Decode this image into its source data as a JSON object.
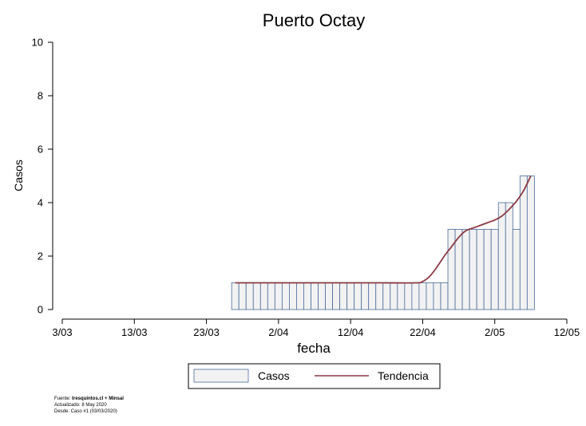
{
  "chart_data": {
    "type": "bar",
    "title": "Puerto Octay",
    "xlabel": "fecha",
    "ylabel": "Casos",
    "ylim": [
      0,
      10
    ],
    "y_ticks": [
      "0",
      "2",
      "4",
      "6",
      "8",
      "10"
    ],
    "x_range": [
      "2020-03-03",
      "2020-05-12"
    ],
    "x_ticks": [
      {
        "label": "3/03",
        "date": "2020-03-03"
      },
      {
        "label": "13/03",
        "date": "2020-03-13"
      },
      {
        "label": "23/03",
        "date": "2020-03-23"
      },
      {
        "label": "2/04",
        "date": "2020-04-02"
      },
      {
        "label": "12/04",
        "date": "2020-04-12"
      },
      {
        "label": "22/04",
        "date": "2020-04-22"
      },
      {
        "label": "2/05",
        "date": "2020-05-02"
      },
      {
        "label": "12/05",
        "date": "2020-05-12"
      }
    ],
    "grid": false,
    "legend_position": "bottom",
    "series": [
      {
        "name": "Casos",
        "kind": "bar",
        "color": "#f2f2f2",
        "edge_color": "#4a6a9a",
        "points": [
          {
            "date": "2020-03-27",
            "value": 1
          },
          {
            "date": "2020-03-28",
            "value": 1
          },
          {
            "date": "2020-03-29",
            "value": 1
          },
          {
            "date": "2020-03-30",
            "value": 1
          },
          {
            "date": "2020-03-31",
            "value": 1
          },
          {
            "date": "2020-04-01",
            "value": 1
          },
          {
            "date": "2020-04-02",
            "value": 1
          },
          {
            "date": "2020-04-03",
            "value": 1
          },
          {
            "date": "2020-04-04",
            "value": 1
          },
          {
            "date": "2020-04-05",
            "value": 1
          },
          {
            "date": "2020-04-06",
            "value": 1
          },
          {
            "date": "2020-04-07",
            "value": 1
          },
          {
            "date": "2020-04-08",
            "value": 1
          },
          {
            "date": "2020-04-09",
            "value": 1
          },
          {
            "date": "2020-04-10",
            "value": 1
          },
          {
            "date": "2020-04-11",
            "value": 1
          },
          {
            "date": "2020-04-12",
            "value": 1
          },
          {
            "date": "2020-04-13",
            "value": 1
          },
          {
            "date": "2020-04-14",
            "value": 1
          },
          {
            "date": "2020-04-15",
            "value": 1
          },
          {
            "date": "2020-04-16",
            "value": 1
          },
          {
            "date": "2020-04-17",
            "value": 1
          },
          {
            "date": "2020-04-18",
            "value": 1
          },
          {
            "date": "2020-04-19",
            "value": 1
          },
          {
            "date": "2020-04-20",
            "value": 1
          },
          {
            "date": "2020-04-21",
            "value": 1
          },
          {
            "date": "2020-04-22",
            "value": 1
          },
          {
            "date": "2020-04-23",
            "value": 1
          },
          {
            "date": "2020-04-24",
            "value": 1
          },
          {
            "date": "2020-04-25",
            "value": 1
          },
          {
            "date": "2020-04-26",
            "value": 3
          },
          {
            "date": "2020-04-27",
            "value": 3
          },
          {
            "date": "2020-04-28",
            "value": 3
          },
          {
            "date": "2020-04-29",
            "value": 3
          },
          {
            "date": "2020-04-30",
            "value": 3
          },
          {
            "date": "2020-05-01",
            "value": 3
          },
          {
            "date": "2020-05-02",
            "value": 3
          },
          {
            "date": "2020-05-03",
            "value": 4
          },
          {
            "date": "2020-05-04",
            "value": 4
          },
          {
            "date": "2020-05-05",
            "value": 3
          },
          {
            "date": "2020-05-06",
            "value": 5
          },
          {
            "date": "2020-05-07",
            "value": 5
          }
        ]
      },
      {
        "name": "Tendencia",
        "kind": "line",
        "color": "#8b3a44",
        "points": [
          {
            "date": "2020-03-27",
            "value": 1
          },
          {
            "date": "2020-04-01",
            "value": 1
          },
          {
            "date": "2020-04-06",
            "value": 1
          },
          {
            "date": "2020-04-11",
            "value": 1
          },
          {
            "date": "2020-04-16",
            "value": 1
          },
          {
            "date": "2020-04-21",
            "value": 1.0
          },
          {
            "date": "2020-04-22",
            "value": 1.05
          },
          {
            "date": "2020-04-23",
            "value": 1.25
          },
          {
            "date": "2020-04-24",
            "value": 1.6
          },
          {
            "date": "2020-04-25",
            "value": 2.0
          },
          {
            "date": "2020-04-26",
            "value": 2.35
          },
          {
            "date": "2020-04-27",
            "value": 2.7
          },
          {
            "date": "2020-04-28",
            "value": 2.95
          },
          {
            "date": "2020-04-29",
            "value": 3.05
          },
          {
            "date": "2020-04-30",
            "value": 3.15
          },
          {
            "date": "2020-05-01",
            "value": 3.25
          },
          {
            "date": "2020-05-02",
            "value": 3.35
          },
          {
            "date": "2020-05-03",
            "value": 3.5
          },
          {
            "date": "2020-05-04",
            "value": 3.75
          },
          {
            "date": "2020-05-05",
            "value": 4.05
          },
          {
            "date": "2020-05-06",
            "value": 4.45
          },
          {
            "date": "2020-05-07",
            "value": 5.0
          }
        ]
      }
    ]
  },
  "footer": {
    "source_prefix": "Fuente: ",
    "source_bold": "tresquintos.cl + Minsal",
    "updated": "Actualizado: 8 May 2020",
    "since": "Desde: Caso #1  (03/03/2020)"
  }
}
